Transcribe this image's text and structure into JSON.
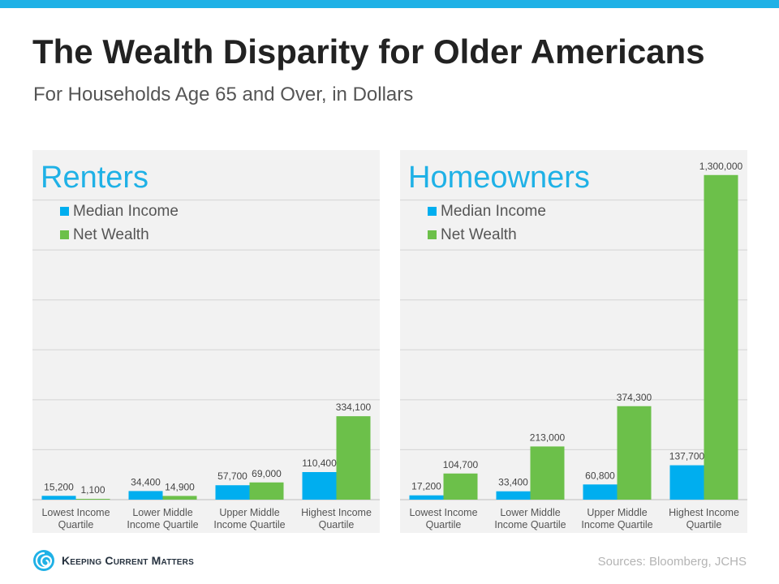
{
  "header": {
    "title": "The Wealth Disparity for Older Americans",
    "subtitle": "For Households Age 65 and Over, in Dollars"
  },
  "footer": {
    "logo_text": "Keeping Current Matters",
    "source": "Sources: Bloomberg, JCHS"
  },
  "colors": {
    "median_income": "#00aeef",
    "net_wealth": "#6cc04a",
    "accent": "#1fb1e6"
  },
  "chart_data": [
    {
      "type": "bar",
      "title": "Renters",
      "categories": [
        "Lowest Income Quartile",
        "Lower Middle Income Quartile",
        "Upper Middle Income Quartile",
        "Highest Income Quartile"
      ],
      "series": [
        {
          "name": "Median Income",
          "values": [
            15200,
            34400,
            57700,
            110400
          ],
          "labels": [
            "15,200",
            "34,400",
            "57,700",
            "110,400"
          ]
        },
        {
          "name": "Net Wealth",
          "values": [
            1100,
            14900,
            69000,
            334100
          ],
          "labels": [
            "1,100",
            "14,900",
            "69,000",
            "334,100"
          ]
        }
      ],
      "ylim": [
        0,
        1400000
      ],
      "grid": true,
      "legend": "top-left"
    },
    {
      "type": "bar",
      "title": "Homeowners",
      "categories": [
        "Lowest Income Quartile",
        "Lower Middle Income Quartile",
        "Upper Middle Income Quartile",
        "Highest Income Quartile"
      ],
      "series": [
        {
          "name": "Median Income",
          "values": [
            17200,
            33400,
            60800,
            137700
          ],
          "labels": [
            "17,200",
            "33,400",
            "60,800",
            "137,700"
          ]
        },
        {
          "name": "Net Wealth",
          "values": [
            104700,
            213000,
            374300,
            1300000
          ],
          "labels": [
            "104,700",
            "213,000",
            "374,300",
            "1,300,000"
          ]
        }
      ],
      "ylim": [
        0,
        1400000
      ],
      "grid": true,
      "legend": "top-left"
    }
  ]
}
